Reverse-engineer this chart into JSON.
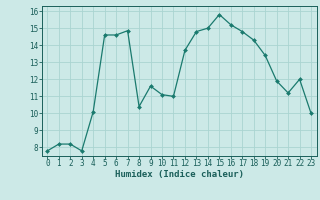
{
  "x": [
    0,
    1,
    2,
    3,
    4,
    5,
    6,
    7,
    8,
    9,
    10,
    11,
    12,
    13,
    14,
    15,
    16,
    17,
    18,
    19,
    20,
    21,
    22,
    23
  ],
  "y": [
    7.8,
    8.2,
    8.2,
    7.8,
    10.1,
    14.6,
    14.6,
    14.85,
    10.4,
    11.6,
    11.1,
    11.0,
    13.7,
    14.8,
    15.0,
    15.8,
    15.2,
    14.8,
    14.3,
    13.4,
    11.9,
    11.2,
    12.0,
    10.0
  ],
  "line_color": "#1a7a6e",
  "marker": "D",
  "marker_size": 2.0,
  "bg_color": "#cce9e7",
  "grid_color": "#aad4d1",
  "xlabel": "Humidex (Indice chaleur)",
  "ylim": [
    7.5,
    16.3
  ],
  "xlim": [
    -0.5,
    23.5
  ],
  "yticks": [
    8,
    9,
    10,
    11,
    12,
    13,
    14,
    15,
    16
  ],
  "xticks": [
    0,
    1,
    2,
    3,
    4,
    5,
    6,
    7,
    8,
    9,
    10,
    11,
    12,
    13,
    14,
    15,
    16,
    17,
    18,
    19,
    20,
    21,
    22,
    23
  ],
  "tick_color": "#1a5f5a",
  "label_fontsize": 6.5,
  "tick_fontsize": 5.5,
  "linewidth": 0.9
}
